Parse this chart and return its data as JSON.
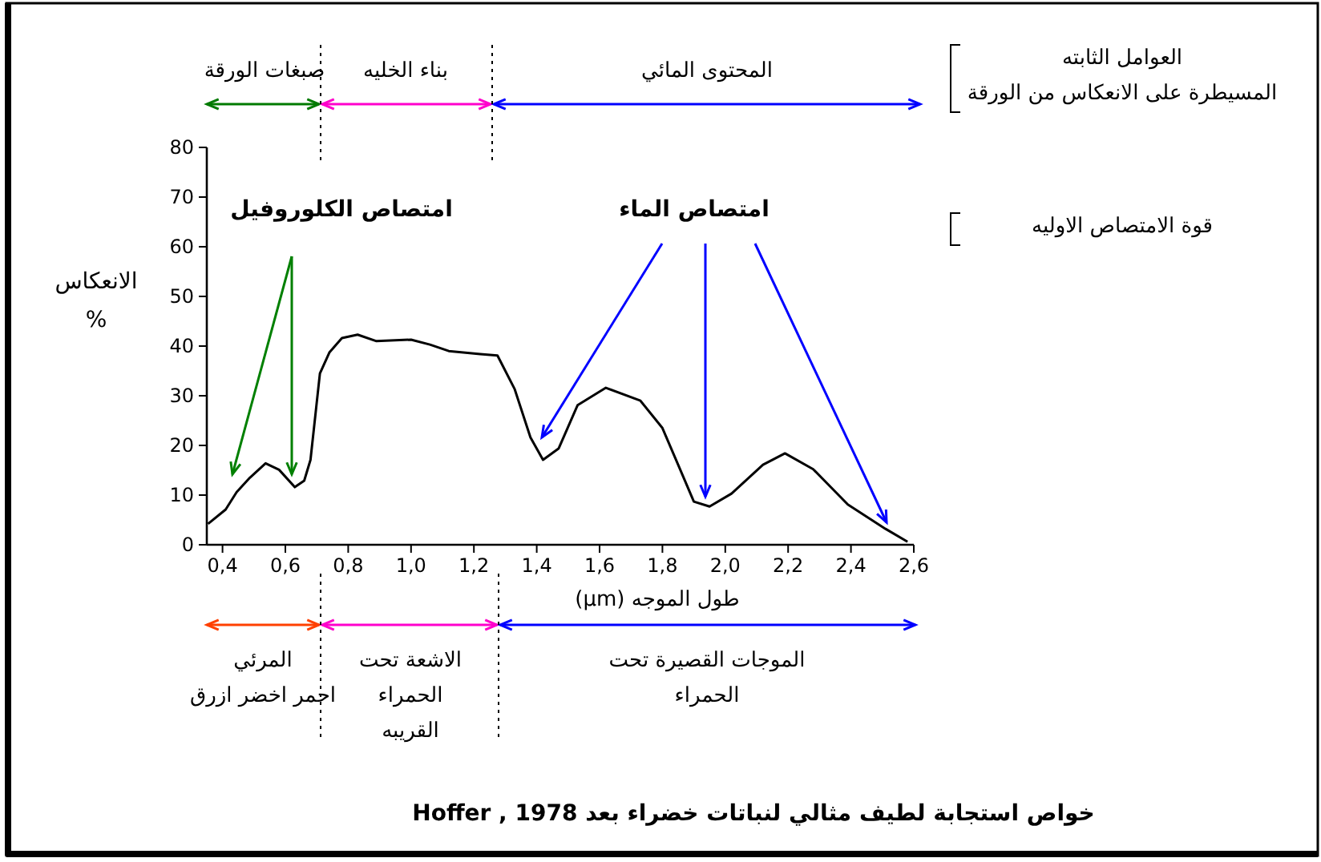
{
  "chart_data": {
    "type": "line",
    "title": "خواص استجابة لطيف مثالي لنباتات خضراء بعد Hoffer , 1978",
    "xlabel": "طول الموجه (µm)",
    "ylabel": "الانعكاس\n%",
    "x": [
      0.354,
      0.41,
      0.445,
      0.487,
      0.537,
      0.58,
      0.63,
      0.66,
      0.68,
      0.71,
      0.74,
      0.78,
      0.83,
      0.89,
      1.0,
      1.06,
      1.12,
      1.22,
      1.275,
      1.33,
      1.38,
      1.42,
      1.47,
      1.53,
      1.62,
      1.73,
      1.8,
      1.85,
      1.9,
      1.95,
      2.02,
      2.12,
      2.19,
      2.28,
      2.39,
      2.51,
      2.58
    ],
    "series": [
      {
        "color": "#000000",
        "values": [
          4.2,
          7.1,
          10.6,
          13.5,
          16.4,
          15.1,
          11.6,
          12.9,
          17.1,
          34.5,
          38.7,
          41.6,
          42.3,
          41,
          41.3,
          40.3,
          39,
          38.4,
          38.1,
          31.3,
          21.6,
          17.1,
          19.4,
          28.1,
          31.6,
          29,
          23.5,
          16.1,
          8.7,
          7.7,
          10.3,
          16.1,
          18.4,
          15.2,
          8.1,
          3.2,
          0.6
        ]
      }
    ],
    "xlim": [
      0.35,
      2.6
    ],
    "ylim": [
      0,
      80
    ],
    "xticks": [
      {
        "value": 0.4,
        "label": "0,4"
      },
      {
        "value": 0.6,
        "label": "0,6"
      },
      {
        "value": 0.8,
        "label": "0,8"
      },
      {
        "value": 1.0,
        "label": "1,0"
      },
      {
        "value": 1.2,
        "label": "1,2"
      },
      {
        "value": 1.4,
        "label": "1,4"
      },
      {
        "value": 1.6,
        "label": "1,6"
      },
      {
        "value": 1.8,
        "label": "1,8"
      },
      {
        "value": 2.0,
        "label": "2,0"
      },
      {
        "value": 2.2,
        "label": "2,2"
      },
      {
        "value": 2.4,
        "label": "2,4"
      },
      {
        "value": 2.6,
        "label": "2,6"
      }
    ],
    "yticks": [
      0,
      10,
      20,
      30,
      40,
      50,
      60,
      70,
      80
    ],
    "grid": false,
    "marker": "none",
    "line_style": "solid",
    "annotations": [
      "امتصاص الكلوروفيل",
      "امتصاص الماء",
      "العوامل الثابته\nالمسيطرة على الانعكاس من الورقة",
      "قوة الامتصاص الاوليه",
      "صبغات الورقة",
      "بناء الخليه",
      "المحتوى المائي",
      "المرئي\nاحمر اخضر ازرق",
      "الاشعة تحت\nالحمراء\nالقريبه",
      "الموجات القصيرة تحت\nالحمراء"
    ]
  }
}
